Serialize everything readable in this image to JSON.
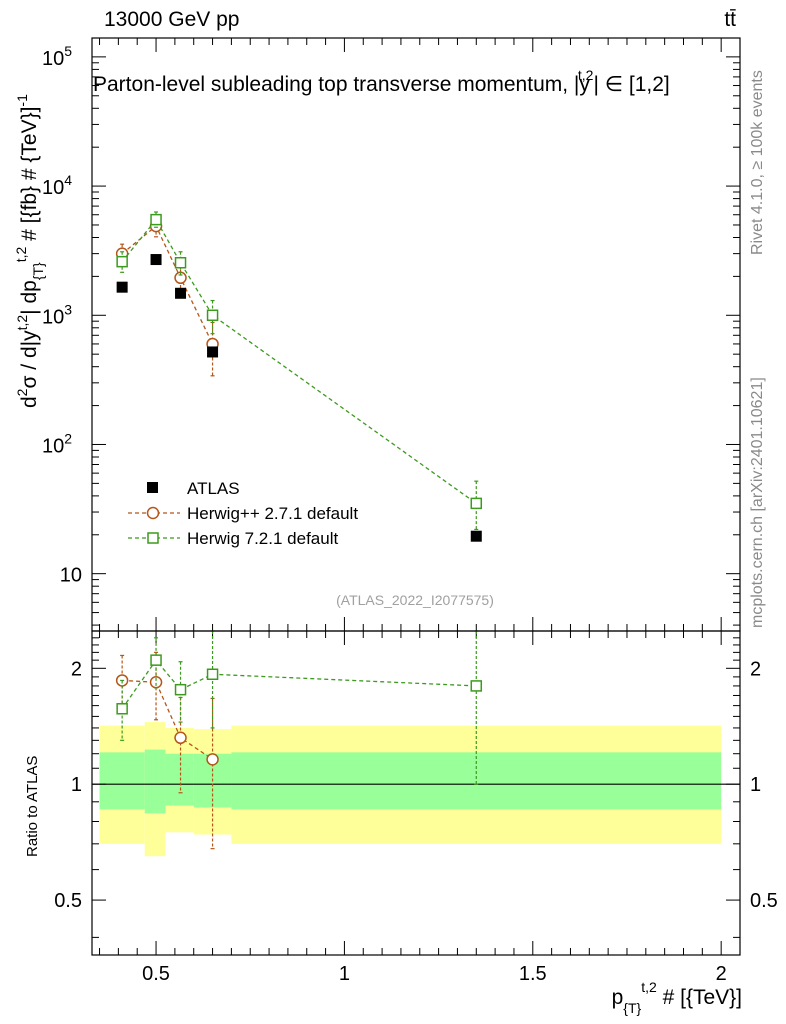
{
  "header": {
    "left": "13000 GeV pp",
    "right": "tt̄"
  },
  "side_texts": {
    "rivet": "Rivet 4.1.0, ≥ 100k events",
    "mcplots": "mcplots.cern.ch [arXiv:2401.10621]"
  },
  "chart_data": [
    {
      "panel": "main",
      "type": "scatter",
      "title": "Parton-level subleading top transverse momentum, |y^{t,2}| ∈ [1,2]",
      "title_parts": {
        "prefix": "Parton-level subleading top transverse momentum, |",
        "y": "y",
        "sup": "t,2",
        "suffix": "| ∈ [1,2]"
      },
      "ylabel": "d²σ / d|y^{t,2}| dp_{T}^{t,2} # [{fb} # {TeV}]^{-1}",
      "ylabel_parts": {
        "d": "d",
        "sup2": "2",
        "sigma": "σ / d|y",
        "supt2": "t,2",
        "mid": "| dp",
        "sub": "{T}",
        "supt2b": "t,2",
        "end": " # [{fb} # {TeV}]",
        "supm1": "-1"
      },
      "yscale": "log",
      "ylim": [
        3.6,
        140000
      ],
      "yticks": [
        {
          "v": 100000,
          "base": "10",
          "exp": "5"
        },
        {
          "v": 10000,
          "base": "10",
          "exp": "4"
        },
        {
          "v": 1000,
          "base": "10",
          "exp": "3"
        },
        {
          "v": 100,
          "base": "10",
          "exp": "2"
        },
        {
          "v": 10,
          "base": "10",
          "exp": ""
        }
      ],
      "reference": "(ATLAS_2022_I2077575)",
      "series": [
        {
          "name": "ATLAS",
          "color": "#000000",
          "marker": "filled-square",
          "x": [
            0.41,
            0.5,
            0.565,
            0.65,
            1.35
          ],
          "y": [
            1650,
            2700,
            1480,
            520,
            19.5
          ],
          "yerr_lo": [
            0,
            0,
            0,
            0,
            0
          ],
          "yerr_hi": [
            0,
            0,
            0,
            0,
            0
          ]
        },
        {
          "name": "Herwig++ 2.7.1 default",
          "color": "#b5561a",
          "marker": "open-circle",
          "x": [
            0.41,
            0.5,
            0.565,
            0.65
          ],
          "y": [
            3000,
            4900,
            1950,
            600
          ],
          "yerr_lo": [
            2550,
            4050,
            1450,
            340
          ],
          "yerr_hi": [
            3550,
            5800,
            2450,
            880
          ]
        },
        {
          "name": "Herwig 7.2.1 default",
          "color": "#3c9a1e",
          "marker": "open-square",
          "x": [
            0.41,
            0.5,
            0.565,
            0.65,
            1.35
          ],
          "y": [
            2600,
            5500,
            2550,
            1000,
            35
          ],
          "yerr_lo": [
            2150,
            4800,
            2050,
            720,
            22
          ],
          "yerr_hi": [
            3100,
            6300,
            3100,
            1300,
            52
          ]
        }
      ]
    },
    {
      "panel": "ratio",
      "type": "scatter",
      "ylabel": "Ratio to ATLAS",
      "xlabel": "p_{T}^{t,2} # [{TeV}]",
      "xlabel_parts": {
        "p": "p",
        "sub": "{T}",
        "sup": "t,2",
        "end": " # [{TeV}]"
      },
      "xlim": [
        0.33,
        2.05
      ],
      "ylim": [
        0.36,
        2.5
      ],
      "xticks": [
        {
          "v": 0.5,
          "label": "0.5"
        },
        {
          "v": 1.0,
          "label": "1"
        },
        {
          "v": 1.5,
          "label": "1.5"
        },
        {
          "v": 2.0,
          "label": "2"
        }
      ],
      "yticks": [
        {
          "v": 2,
          "label": "2"
        },
        {
          "v": 1,
          "label": "1"
        },
        {
          "v": 0.5,
          "label": "0.5"
        }
      ],
      "bands": {
        "bins": [
          0.35,
          0.47,
          0.525,
          0.6,
          0.7,
          2.0
        ],
        "yellow_lo": [
          0.7,
          0.65,
          0.75,
          0.74,
          0.7
        ],
        "yellow_hi": [
          1.42,
          1.45,
          1.4,
          1.39,
          1.42
        ],
        "green_lo": [
          0.86,
          0.84,
          0.88,
          0.87,
          0.86
        ],
        "green_hi": [
          1.21,
          1.23,
          1.2,
          1.2,
          1.21
        ]
      },
      "series": [
        {
          "name": "Herwig++ 2.7.1 default",
          "color": "#b5561a",
          "marker": "open-circle",
          "x": [
            0.41,
            0.5,
            0.565,
            0.65
          ],
          "y": [
            1.86,
            1.84,
            1.32,
            1.16
          ],
          "yerr_lo": [
            1.55,
            1.47,
            0.95,
            0.68
          ],
          "yerr_hi": [
            2.16,
            2.2,
            1.68,
            1.67
          ]
        },
        {
          "name": "Herwig 7.2.1 default",
          "color": "#3c9a1e",
          "marker": "open-square",
          "x": [
            0.41,
            0.5,
            0.565,
            0.65,
            1.35
          ],
          "y": [
            1.57,
            2.1,
            1.76,
            1.93,
            1.8
          ],
          "yerr_lo": [
            1.3,
            1.78,
            1.45,
            1.4,
            1.0
          ],
          "yerr_hi": [
            1.86,
            2.4,
            2.08,
            2.5,
            2.5
          ]
        }
      ]
    }
  ]
}
